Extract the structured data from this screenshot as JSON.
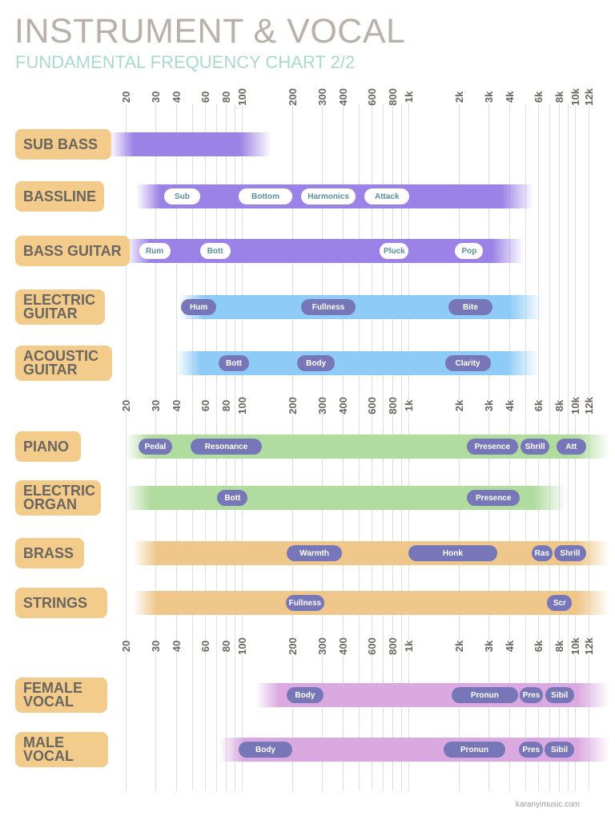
{
  "header": {
    "title": "INSTRUMENT & VOCAL",
    "subtitle": "FUNDAMENTAL FREQUENCY CHART 2/2"
  },
  "axis": {
    "scale": "log",
    "unit": "Hz",
    "tick_labels": [
      "20",
      "30",
      "40",
      "60",
      "80",
      "100",
      "200",
      "300",
      "400",
      "600",
      "800",
      "1k",
      "2k",
      "3k",
      "4k",
      "6k",
      "8k",
      "10k",
      "12k"
    ],
    "tick_values": [
      20,
      30,
      40,
      60,
      80,
      100,
      200,
      300,
      400,
      600,
      800,
      1000,
      2000,
      3000,
      4000,
      6000,
      8000,
      10000,
      12000
    ],
    "grid_values": [
      20,
      30,
      40,
      50,
      60,
      70,
      80,
      90,
      100,
      200,
      300,
      400,
      500,
      600,
      700,
      800,
      900,
      1000,
      2000,
      3000,
      4000,
      5000,
      6000,
      7000,
      8000,
      9000,
      10000,
      12000
    ]
  },
  "colors": {
    "label_bg": "#f3cb8b",
    "purple": "#9b82e6",
    "blue": "#8ecbf6",
    "green": "#b1dca0",
    "orange": "#efc78a",
    "pink": "#d9a9e0",
    "pill_dark": "#7776b8"
  },
  "rows": [
    {
      "label": "SUB BASS",
      "color": "purple",
      "from": 16,
      "to": 150,
      "pill_style": "light",
      "pills": []
    },
    {
      "label": "BASSLINE",
      "color": "purple",
      "from": 23,
      "to": 5600,
      "pill_style": "light",
      "pills": [
        {
          "label": "Sub",
          "from": 34,
          "to": 56
        },
        {
          "label": "Bottom",
          "from": 95,
          "to": 200
        },
        {
          "label": "Harmonics",
          "from": 226,
          "to": 480
        },
        {
          "label": "Attack",
          "from": 545,
          "to": 1010
        }
      ]
    },
    {
      "label": "BASS GUITAR",
      "color": "purple",
      "from": 20,
      "to": 4900,
      "pill_style": "light",
      "pills": [
        {
          "label": "Rum",
          "from": 24,
          "to": 37
        },
        {
          "label": "Bott",
          "from": 56,
          "to": 85
        },
        {
          "label": "Pluck",
          "from": 670,
          "to": 1000
        },
        {
          "label": "Pop",
          "from": 1900,
          "to": 2800
        }
      ]
    },
    {
      "label": "ELECTRIC GUITAR",
      "color": "blue",
      "from": 42,
      "to": 6300,
      "pill_style": "dark",
      "pills": [
        {
          "label": "Hum",
          "from": 43,
          "to": 70
        },
        {
          "label": "Fullness",
          "from": 226,
          "to": 480
        },
        {
          "label": "Bite",
          "from": 1730,
          "to": 3200
        }
      ]
    },
    {
      "label": "ACOUSTIC GUITAR",
      "color": "blue",
      "from": 40,
      "to": 6000,
      "pill_style": "dark",
      "pills": [
        {
          "label": "Bott",
          "from": 72,
          "to": 110
        },
        {
          "label": "Body",
          "from": 213,
          "to": 360
        },
        {
          "label": "Clarity",
          "from": 1650,
          "to": 3100
        }
      ]
    },
    {
      "label": "PIANO",
      "color": "green",
      "from": 20,
      "to": 16000,
      "pill_style": "dark",
      "pills": [
        {
          "label": "Pedal",
          "from": 24,
          "to": 38
        },
        {
          "label": "Resonance",
          "from": 49,
          "to": 132
        },
        {
          "label": "Presence",
          "from": 2240,
          "to": 4530
        },
        {
          "label": "Shrill",
          "from": 4700,
          "to": 7000
        },
        {
          "label": "Att",
          "from": 7700,
          "to": 11600
        }
      ]
    },
    {
      "label": "ELECTRIC ORGAN",
      "color": "green",
      "from": 20,
      "to": 8800,
      "pill_style": "dark",
      "pills": [
        {
          "label": "Bott",
          "from": 71,
          "to": 108
        },
        {
          "label": "Presence",
          "from": 2250,
          "to": 4650
        }
      ]
    },
    {
      "label": "BRASS",
      "color": "orange",
      "from": 22,
      "to": 16000,
      "pill_style": "dark",
      "pills": [
        {
          "label": "Warmth",
          "from": 185,
          "to": 400
        },
        {
          "label": "Honk",
          "from": 1000,
          "to": 3400
        },
        {
          "label": "Ras",
          "from": 5550,
          "to": 7150
        },
        {
          "label": "Shrill",
          "from": 7400,
          "to": 11600
        }
      ]
    },
    {
      "label": "STRINGS",
      "color": "orange",
      "from": 22,
      "to": 16000,
      "pill_style": "dark",
      "pills": [
        {
          "label": "Fullness",
          "from": 187,
          "to": 306
        },
        {
          "label": "Scr",
          "from": 6800,
          "to": 9570
        }
      ]
    },
    {
      "label": "FEMALE VOCAL",
      "color": "pink",
      "from": 120,
      "to": 16000,
      "pill_style": "dark",
      "pills": [
        {
          "label": "Body",
          "from": 185,
          "to": 306
        },
        {
          "label": "Pronun",
          "from": 1800,
          "to": 4530
        },
        {
          "label": "Pres",
          "from": 4700,
          "to": 6300
        },
        {
          "label": "Sibil",
          "from": 6500,
          "to": 9700
        }
      ]
    },
    {
      "label": "MALE VOCAL",
      "color": "pink",
      "from": 73,
      "to": 16000,
      "pill_style": "dark",
      "pills": [
        {
          "label": "Body",
          "from": 95,
          "to": 200
        },
        {
          "label": "Pronun",
          "from": 1620,
          "to": 3800
        },
        {
          "label": "Pres",
          "from": 4700,
          "to": 6300
        },
        {
          "label": "Sibil",
          "from": 6500,
          "to": 9700
        }
      ]
    }
  ],
  "footer": {
    "credit": "karanyimusic.com"
  }
}
